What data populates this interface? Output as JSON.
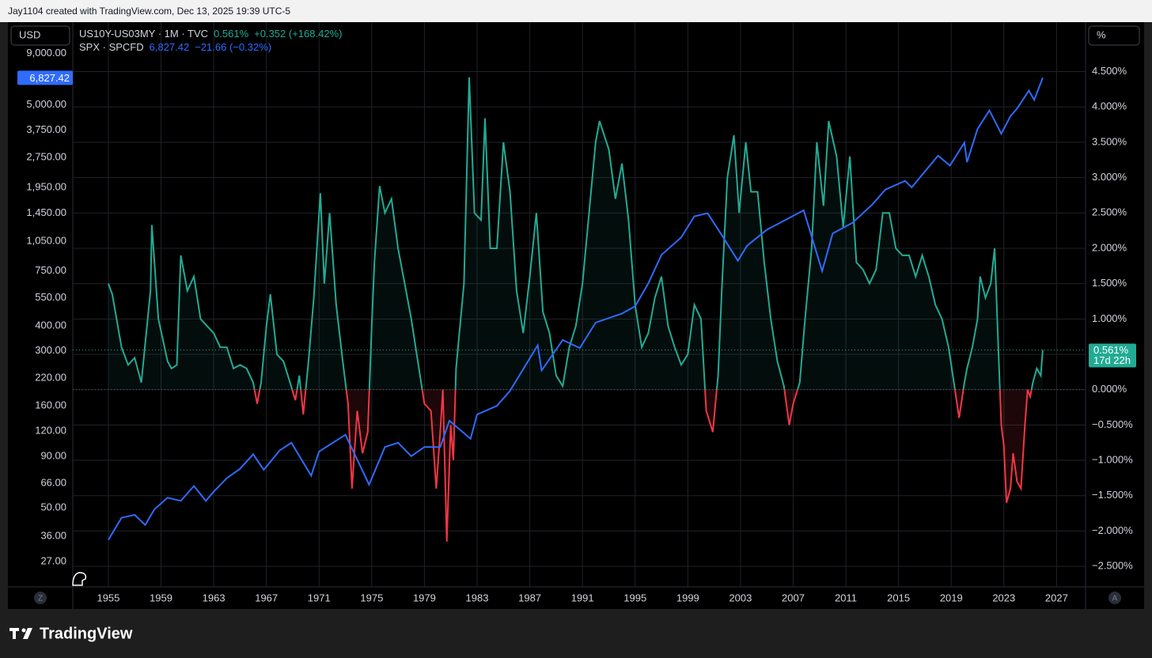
{
  "header": {
    "text": "Jay1104 created with TradingView.com, Dec 13, 2025 19:39 UTC-5"
  },
  "footer": {
    "brand": "TradingView"
  },
  "chart_data": {
    "type": "line",
    "left_unit": "USD",
    "right_unit": "%",
    "left_button": "Z",
    "right_button": "A",
    "countdown": "17d 22h",
    "log_scale": true,
    "grid": true,
    "legend": "top-left",
    "xlim": [
      1952.3,
      2029.2
    ],
    "xticks": [
      1955,
      1959,
      1963,
      1967,
      1971,
      1975,
      1979,
      1983,
      1987,
      1991,
      1995,
      1999,
      2003,
      2007,
      2011,
      2015,
      2019,
      2023,
      2027
    ],
    "ylim": [
      20.2,
      12900
    ],
    "yticks": [
      {
        "value": 9000,
        "label": "9,000.00"
      },
      {
        "value": 5000,
        "label": "5,000.00"
      },
      {
        "value": 3750,
        "label": "3,750.00"
      },
      {
        "value": 2750,
        "label": "2,750.00"
      },
      {
        "value": 1950,
        "label": "1,950.00"
      },
      {
        "value": 1450,
        "label": "1,450.00"
      },
      {
        "value": 1050,
        "label": "1,050.00"
      },
      {
        "value": 750,
        "label": "750.00"
      },
      {
        "value": 550,
        "label": "550.00"
      },
      {
        "value": 400,
        "label": "400.00"
      },
      {
        "value": 300,
        "label": "300.00"
      },
      {
        "value": 220,
        "label": "220.00"
      },
      {
        "value": 160,
        "label": "160.00"
      },
      {
        "value": 120,
        "label": "120.00"
      },
      {
        "value": 90,
        "label": "90.00"
      },
      {
        "value": 66,
        "label": "66.00"
      },
      {
        "value": 50,
        "label": "50.00"
      },
      {
        "value": 36,
        "label": "36.00"
      },
      {
        "value": 27,
        "label": "27.00"
      }
    ],
    "y2lim": [
      -2.79,
      5.2
    ],
    "y2ticks": [
      {
        "value": 4.5,
        "label": "4.500%"
      },
      {
        "value": 4,
        "label": "4.000%"
      },
      {
        "value": 3.5,
        "label": "3.500%"
      },
      {
        "value": 3,
        "label": "3.000%"
      },
      {
        "value": 2.5,
        "label": "2.500%"
      },
      {
        "value": 2,
        "label": "2.000%"
      },
      {
        "value": 1.5,
        "label": "1.500%"
      },
      {
        "value": 1,
        "label": "1.000%"
      },
      {
        "value": 0.5,
        "label": "0.500%"
      },
      {
        "value": 0,
        "label": "0.000%"
      },
      {
        "value": -0.5,
        "label": "−0.500%"
      },
      {
        "value": -1,
        "label": "−1.000%"
      },
      {
        "value": -1.5,
        "label": "−1.500%"
      },
      {
        "value": -2,
        "label": "−2.000%"
      },
      {
        "value": -2.5,
        "label": "−2.500%"
      }
    ],
    "series": [
      {
        "name": "US10Y-US03MY · 1M · TVC",
        "axis": "y2",
        "color": "#22ab94",
        "negative_color": "#f23645",
        "last_label": "0.561%",
        "change_label": "+0.352 (+168.42%)",
        "x": [
          1955.0,
          1955.3,
          1956.0,
          1956.5,
          1957.0,
          1957.5,
          1958.2,
          1958.3,
          1958.8,
          1959.5,
          1959.8,
          1960.2,
          1960.5,
          1961.0,
          1961.5,
          1962.0,
          1962.5,
          1963.0,
          1963.5,
          1964.0,
          1964.5,
          1965.0,
          1965.5,
          1966.0,
          1966.3,
          1966.6,
          1967.0,
          1967.3,
          1967.8,
          1968.3,
          1968.8,
          1969.2,
          1969.5,
          1969.8,
          1970.2,
          1970.6,
          1971.1,
          1971.4,
          1971.8,
          1972.3,
          1972.8,
          1973.2,
          1973.5,
          1973.9,
          1974.3,
          1974.7,
          1975.0,
          1975.2,
          1975.6,
          1976.0,
          1976.5,
          1977.0,
          1977.5,
          1978.0,
          1978.5,
          1979.0,
          1979.5,
          1979.9,
          1980.2,
          1980.4,
          1980.7,
          1981.0,
          1981.2,
          1981.4,
          1982.0,
          1982.4,
          1982.8,
          1983.3,
          1983.6,
          1984.0,
          1984.5,
          1985.0,
          1985.5,
          1986.0,
          1986.5,
          1987.0,
          1987.5,
          1988.0,
          1988.5,
          1989.0,
          1989.5,
          1990.0,
          1990.5,
          1991.0,
          1991.5,
          1992.0,
          1992.3,
          1993.0,
          1993.5,
          1994.0,
          1994.5,
          1995.0,
          1995.5,
          1996.0,
          1996.5,
          1997.0,
          1997.5,
          1998.0,
          1998.5,
          1999.0,
          1999.5,
          2000.0,
          2000.4,
          2000.9,
          2001.3,
          2001.6,
          2002.0,
          2002.5,
          2002.9,
          2003.4,
          2003.8,
          2004.3,
          2004.8,
          2005.3,
          2005.8,
          2006.3,
          2006.7,
          2007.0,
          2007.5,
          2007.9,
          2008.4,
          2008.8,
          2009.3,
          2009.7,
          2010.3,
          2010.8,
          2011.3,
          2011.8,
          2012.3,
          2012.8,
          2013.3,
          2013.8,
          2014.3,
          2014.8,
          2015.3,
          2015.8,
          2016.3,
          2016.8,
          2017.3,
          2017.8,
          2018.3,
          2018.8,
          2019.2,
          2019.6,
          2020.0,
          2020.2,
          2020.6,
          2021.0,
          2021.2,
          2021.6,
          2022.0,
          2022.3,
          2022.6,
          2022.8,
          2023.0,
          2023.2,
          2023.5,
          2023.7,
          2024.0,
          2024.3,
          2024.6,
          2024.8,
          2025.0,
          2025.2,
          2025.5,
          2025.8,
          2025.95
        ],
        "values": [
          1.5,
          1.35,
          0.6,
          0.35,
          0.45,
          0.1,
          1.4,
          2.33,
          1.0,
          0.4,
          0.3,
          0.35,
          1.9,
          1.4,
          1.6,
          1.0,
          0.9,
          0.8,
          0.6,
          0.6,
          0.3,
          0.35,
          0.3,
          0.1,
          -0.2,
          0.1,
          0.9,
          1.35,
          0.5,
          0.4,
          0.1,
          -0.15,
          0.2,
          -0.35,
          0.4,
          1.3,
          2.78,
          1.5,
          2.5,
          1.2,
          0.4,
          -0.2,
          -1.4,
          -0.3,
          -0.9,
          -0.6,
          0.9,
          1.8,
          2.88,
          2.5,
          2.7,
          2.0,
          1.5,
          1.0,
          0.4,
          -0.2,
          -0.3,
          -1.4,
          -0.6,
          0.0,
          -2.15,
          -0.5,
          -1.0,
          0.3,
          1.5,
          4.42,
          2.5,
          2.4,
          3.84,
          2.0,
          2.0,
          3.5,
          2.8,
          1.4,
          0.8,
          1.6,
          2.5,
          1.1,
          0.8,
          0.2,
          0.05,
          0.6,
          0.9,
          1.5,
          2.5,
          3.5,
          3.8,
          3.4,
          2.7,
          3.2,
          2.4,
          1.2,
          0.6,
          0.8,
          1.3,
          1.6,
          0.9,
          0.6,
          0.35,
          0.5,
          1.2,
          1.0,
          -0.3,
          -0.6,
          0.2,
          1.5,
          3.0,
          3.6,
          2.5,
          3.5,
          2.8,
          2.8,
          1.8,
          1.0,
          0.4,
          0.05,
          -0.5,
          -0.2,
          0.1,
          1.0,
          2.0,
          3.5,
          2.6,
          3.8,
          3.3,
          2.3,
          3.3,
          1.8,
          1.7,
          1.5,
          1.7,
          2.5,
          2.5,
          2.0,
          1.9,
          1.9,
          1.6,
          1.9,
          1.6,
          1.2,
          1.0,
          0.6,
          0.1,
          -0.4,
          0.1,
          0.3,
          0.6,
          1.0,
          1.6,
          1.3,
          1.5,
          2.0,
          0.5,
          -0.5,
          -0.8,
          -1.6,
          -1.4,
          -0.9,
          -1.3,
          -1.4,
          -0.5,
          0.0,
          -0.1,
          0.1,
          0.3,
          0.2,
          0.561
        ]
      },
      {
        "name": "SPX · SPCFD",
        "axis": "y",
        "color": "#2f6bff",
        "last_label": "6,827.42",
        "change_label": "−21.66 (−0.32%)",
        "x": [
          1955.0,
          1956.0,
          1957.0,
          1957.8,
          1958.5,
          1959.5,
          1960.5,
          1961.5,
          1962.4,
          1963.0,
          1964.0,
          1965.0,
          1966.0,
          1966.8,
          1968.0,
          1968.9,
          1970.4,
          1971.0,
          1973.0,
          1974.8,
          1976.0,
          1977.0,
          1978.0,
          1979.0,
          1980.2,
          1980.9,
          1982.5,
          1983.0,
          1984.5,
          1985.5,
          1987.6,
          1987.9,
          1989.5,
          1990.8,
          1992.0,
          1994.0,
          1995.0,
          1996.0,
          1997.0,
          1998.5,
          1999.5,
          2000.5,
          2001.5,
          2002.8,
          2003.5,
          2005.0,
          2007.8,
          2009.2,
          2010.0,
          2011.5,
          2013.0,
          2014.0,
          2015.5,
          2016.0,
          2018.0,
          2018.9,
          2020.0,
          2020.2,
          2021.0,
          2021.9,
          2022.8,
          2023.5,
          2024.0,
          2024.9,
          2025.3,
          2025.95
        ],
        "values": [
          34.5,
          44.5,
          46,
          41,
          49,
          56,
          54,
          64,
          54,
          60,
          70,
          78,
          92,
          77,
          96,
          105,
          72,
          95,
          115,
          65,
          100,
          105,
          90,
          100,
          100,
          135,
          110,
          145,
          160,
          190,
          320,
          240,
          340,
          310,
          415,
          460,
          500,
          650,
          900,
          1100,
          1400,
          1450,
          1150,
          842,
          1000,
          1200,
          1500,
          748,
          1150,
          1300,
          1600,
          1900,
          2100,
          1950,
          2800,
          2500,
          3250,
          2600,
          3800,
          4700,
          3600,
          4400,
          4800,
          5900,
          5300,
          6827.42
        ]
      }
    ]
  }
}
